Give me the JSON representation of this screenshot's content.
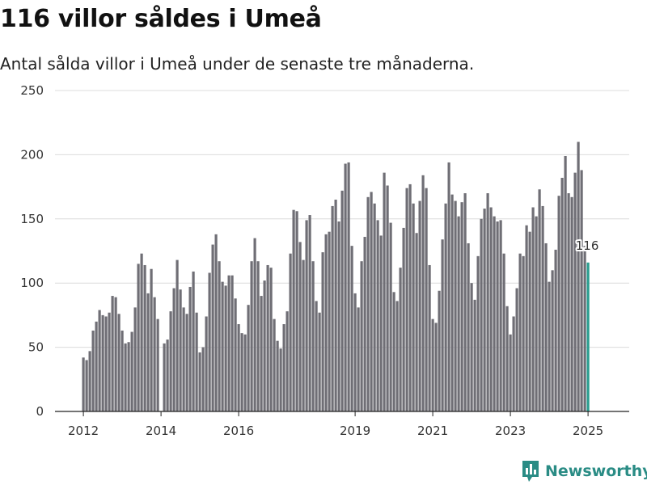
{
  "title": "116 villor såldes i Umeå",
  "subtitle": "Antal sålda villor i Umeå under de senaste tre månaderna.",
  "brand": "Newsworthy",
  "colors": {
    "bar": "#6f6e75",
    "highlight": "#2a9d8f",
    "grid": "#dcdcdc",
    "brand": "#2a8c85"
  },
  "chart_data": {
    "type": "bar",
    "x_start": "2012-01",
    "x_ticks": [
      "2012",
      "2014",
      "2016",
      "2019",
      "2021",
      "2023",
      "2025"
    ],
    "y_ticks": [
      "0",
      "50",
      "100",
      "150",
      "200",
      "250"
    ],
    "ylim": [
      0,
      250
    ],
    "grid": true,
    "highlight_label": "116",
    "values": [
      42,
      40,
      47,
      63,
      70,
      79,
      75,
      74,
      77,
      90,
      89,
      76,
      63,
      53,
      54,
      62,
      81,
      115,
      123,
      114,
      92,
      111,
      89,
      72,
      0,
      53,
      56,
      78,
      96,
      118,
      95,
      81,
      76,
      97,
      109,
      77,
      46,
      50,
      74,
      108,
      130,
      138,
      117,
      101,
      98,
      106,
      106,
      88,
      68,
      61,
      60,
      83,
      117,
      135,
      117,
      90,
      102,
      114,
      112,
      72,
      55,
      49,
      68,
      78,
      123,
      157,
      156,
      132,
      118,
      149,
      153,
      117,
      86,
      77,
      124,
      138,
      140,
      160,
      165,
      148,
      172,
      193,
      194,
      129,
      92,
      81,
      117,
      136,
      167,
      171,
      162,
      149,
      137,
      186,
      176,
      147,
      93,
      86,
      112,
      143,
      174,
      177,
      162,
      139,
      164,
      184,
      174,
      114,
      72,
      69,
      94,
      134,
      162,
      194,
      169,
      164,
      152,
      163,
      170,
      131,
      100,
      87,
      121,
      150,
      158,
      170,
      159,
      152,
      148,
      149,
      123,
      82,
      60,
      74,
      96,
      123,
      121,
      145,
      140,
      159,
      152,
      173,
      160,
      131,
      101,
      110,
      126,
      168,
      182,
      199,
      170,
      167,
      186,
      210,
      188,
      129,
      116
    ]
  }
}
